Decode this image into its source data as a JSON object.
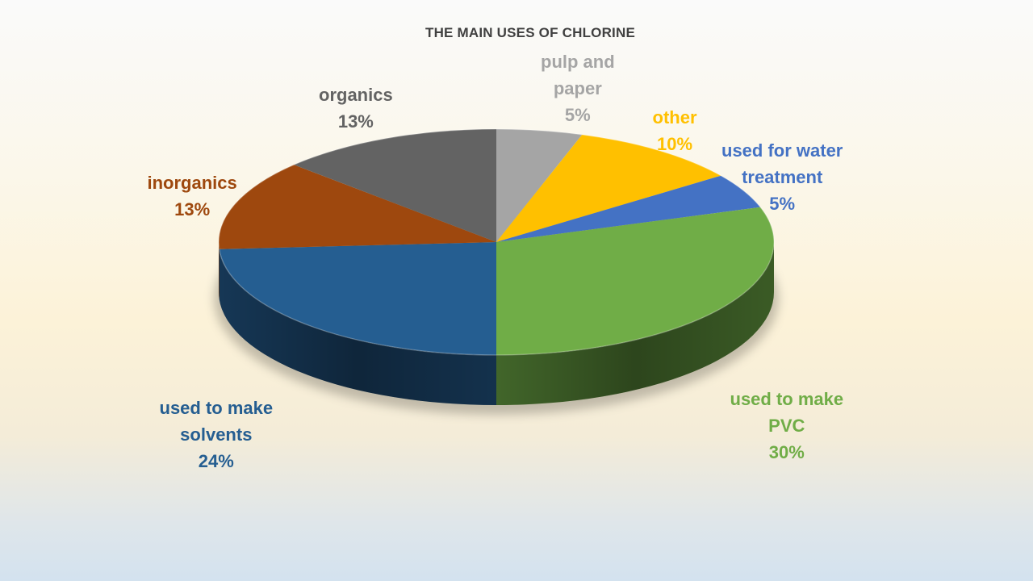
{
  "chart_data": {
    "type": "pie",
    "title": "THE MAIN USES OF CHLORINE",
    "slices": [
      {
        "label": "pulp and paper",
        "label_lines": [
          "pulp and",
          "paper"
        ],
        "value_label": "5%",
        "value": 5,
        "color": "#a5a5a5"
      },
      {
        "label": "other",
        "label_lines": [
          "other"
        ],
        "value_label": "10%",
        "value": 10,
        "color": "#ffc000"
      },
      {
        "label": "used for water treatment",
        "label_lines": [
          "used for water",
          "treatment"
        ],
        "value_label": "5%",
        "value": 5,
        "color": "#4472c4"
      },
      {
        "label": "used to make PVC",
        "label_lines": [
          "used to make",
          "PVC"
        ],
        "value_label": "30%",
        "value": 30,
        "color": "#70ad47"
      },
      {
        "label": "used to make solvents",
        "label_lines": [
          "used to make",
          "solvents"
        ],
        "value_label": "24%",
        "value": 24,
        "color": "#255e91"
      },
      {
        "label": "inorganics",
        "label_lines": [
          "inorganics"
        ],
        "value_label": "13%",
        "value": 13,
        "color": "#9e480e"
      },
      {
        "label": "organics",
        "label_lines": [
          "organics"
        ],
        "value_label": "13%",
        "value": 13,
        "color": "#636363"
      }
    ]
  }
}
